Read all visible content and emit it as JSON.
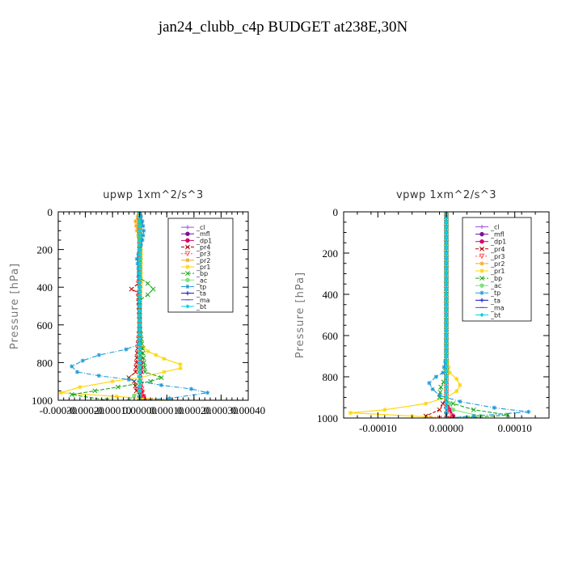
{
  "figure": {
    "title": "jan24_clubb_c4p  BUDGET at238E,30N"
  },
  "chart_data": [
    {
      "type": "line",
      "title": "upwp   1xm^2/s^3",
      "ylabel": "Pressure [hPa]",
      "ylim": [
        1000,
        0
      ],
      "xlim": [
        -0.0003,
        0.0004
      ],
      "yticks": [
        0,
        200,
        400,
        600,
        800,
        1000
      ],
      "xticks": [
        -0.0003,
        -0.0002,
        -0.0001,
        0.0,
        0.0001,
        0.0002,
        0.0003,
        0.0004
      ],
      "xtick_labels": [
        "-0.00030",
        "-0.00020",
        "-0.00010",
        "0.00000",
        "0.00010",
        "0.00020",
        "0.00030",
        "0.00040"
      ],
      "legend_position": "top-right",
      "series": [
        {
          "name": "_cl",
          "color": "#9b4fd8",
          "marker": "+",
          "p": [
            0,
            200,
            400,
            600,
            800,
            900,
            960,
            1000
          ],
          "x": [
            0,
            0,
            0,
            0,
            0,
            0,
            0,
            0
          ]
        },
        {
          "name": "_mfl",
          "color": "#7a0fa0",
          "marker": "o",
          "p": [
            0,
            200,
            400,
            600,
            800,
            900,
            960,
            1000
          ],
          "x": [
            0,
            0,
            0,
            0,
            0,
            0,
            0,
            0
          ]
        },
        {
          "name": "_dp1",
          "color": "#d8006a",
          "marker": "o",
          "p": [
            0,
            300,
            600,
            850,
            900,
            950,
            980,
            1000
          ],
          "x": [
            0,
            0,
            0,
            5e-06,
            0,
            8e-06,
            1.5e-05,
            2e-05
          ]
        },
        {
          "name": "_pr4",
          "color": "#b80000",
          "marker": "x",
          "p": [
            0,
            300,
            380,
            410,
            430,
            600,
            850,
            880,
            900,
            950,
            980,
            1000
          ],
          "x": [
            0,
            0,
            -5e-06,
            -3e-05,
            -5e-06,
            0,
            -1.5e-05,
            -4e-05,
            -2e-05,
            -1.2e-05,
            1e-05,
            4e-05
          ]
        },
        {
          "name": "_pr3",
          "color": "#ff5050",
          "marker": "v",
          "p": [
            0,
            400,
            600,
            880,
            920,
            960,
            1000
          ],
          "x": [
            0,
            0,
            0,
            0,
            5e-06,
            1e-05,
            1.5e-05
          ]
        },
        {
          "name": "_pr2",
          "color": "#f2a81d",
          "marker": "*",
          "p": [
            0,
            50,
            100,
            150,
            200,
            300,
            400,
            500,
            700,
            800,
            900,
            950,
            1000
          ],
          "x": [
            0,
            -1.5e-05,
            -1e-05,
            0,
            3e-06,
            0,
            0,
            0,
            0,
            0,
            0,
            0,
            0
          ]
        },
        {
          "name": "_pr1",
          "color": "#ffd400",
          "marker": "*",
          "p": [
            0,
            200,
            400,
            500,
            600,
            700,
            740,
            780,
            810,
            830,
            850,
            880,
            900,
            930,
            960,
            1000
          ],
          "x": [
            0,
            5e-06,
            5e-06,
            0,
            0,
            0,
            3e-05,
            9e-05,
            0.00015,
            0.00015,
            9e-05,
            0,
            -0.0001,
            -0.00022,
            -0.00029,
            0.00012
          ]
        },
        {
          "name": "_bp",
          "color": "#19a619",
          "marker": "x",
          "p": [
            0,
            350,
            380,
            410,
            440,
            470,
            600,
            850,
            880,
            900,
            930,
            970,
            1000
          ],
          "x": [
            0,
            0,
            3e-05,
            5e-05,
            3e-05,
            0,
            0,
            2e-05,
            8e-05,
            4e-05,
            -8e-05,
            -0.00025,
            -0.00012
          ]
        },
        {
          "name": "_ac",
          "color": "#7ee07e",
          "marker": "o",
          "p": [
            0,
            400,
            600,
            900,
            950,
            1000
          ],
          "x": [
            0,
            0,
            0,
            0,
            0,
            -4e-05
          ]
        },
        {
          "name": "_tp",
          "color": "#1a9ad6",
          "marker": "*",
          "p": [
            0,
            50,
            100,
            150,
            200,
            250,
            300,
            400,
            500,
            700,
            730,
            760,
            790,
            820,
            850,
            870,
            890,
            920,
            940,
            960,
            990,
            1000
          ],
          "x": [
            0,
            1e-05,
            1.5e-05,
            1e-05,
            0,
            -1e-05,
            -5e-06,
            0,
            0,
            0,
            -5e-05,
            -0.00015,
            -0.00021,
            -0.00025,
            -0.00023,
            -0.00015,
            -4e-05,
            8e-05,
            0.00019,
            0.00025,
            0.00011,
            0
          ]
        },
        {
          "name": "_ta",
          "color": "#1010c0",
          "marker": "+",
          "p": [
            0,
            400,
            700,
            1000
          ],
          "x": [
            0,
            0,
            0,
            0
          ]
        },
        {
          "name": "_ma",
          "color": "#3a5ad8",
          "marker": "_",
          "p": [
            0,
            400,
            700,
            1000
          ],
          "x": [
            0,
            0,
            0,
            0
          ]
        },
        {
          "name": "_bt",
          "color": "#00d4e8",
          "marker": "D",
          "p": [
            0,
            400,
            700,
            1000
          ],
          "x": [
            0,
            0,
            0,
            0
          ]
        }
      ]
    },
    {
      "type": "line",
      "title": "vpwp   1xm^2/s^3",
      "ylabel": "Pressure [hPa]",
      "ylim": [
        1000,
        0
      ],
      "xlim": [
        -0.00015,
        0.00015
      ],
      "yticks": [
        0,
        200,
        400,
        600,
        800,
        1000
      ],
      "xticks": [
        -0.0001,
        0.0,
        0.0001
      ],
      "xtick_labels": [
        "-0.00010",
        "0.00000",
        "0.00010"
      ],
      "legend_position": "top-right",
      "series": [
        {
          "name": "_cl",
          "color": "#9b4fd8",
          "marker": "+",
          "p": [
            0,
            200,
            400,
            600,
            800,
            900,
            1000
          ],
          "x": [
            0,
            0,
            0,
            0,
            0,
            0,
            0
          ]
        },
        {
          "name": "_mfl",
          "color": "#7a0fa0",
          "marker": "o",
          "p": [
            0,
            200,
            400,
            600,
            800,
            900,
            1000
          ],
          "x": [
            0,
            0,
            0,
            0,
            0,
            0,
            0
          ]
        },
        {
          "name": "_dp1",
          "color": "#d8006a",
          "marker": "o",
          "p": [
            0,
            600,
            900,
            960,
            990,
            1000
          ],
          "x": [
            0,
            0,
            0,
            5e-06,
            1e-05,
            0
          ]
        },
        {
          "name": "_pr4",
          "color": "#b80000",
          "marker": "x",
          "p": [
            0,
            600,
            900,
            960,
            990,
            1000
          ],
          "x": [
            0,
            0,
            0,
            -1e-05,
            -3e-05,
            -1e-05
          ]
        },
        {
          "name": "_pr3",
          "color": "#ff5050",
          "marker": "v",
          "p": [
            0,
            600,
            900,
            960,
            990,
            1000
          ],
          "x": [
            0,
            0,
            0,
            3e-06,
            8e-06,
            0
          ]
        },
        {
          "name": "_pr2",
          "color": "#f2a81d",
          "marker": "*",
          "p": [
            0,
            600,
            900,
            1000
          ],
          "x": [
            0,
            0,
            0,
            0
          ]
        },
        {
          "name": "_pr1",
          "color": "#ffd400",
          "marker": "*",
          "p": [
            0,
            700,
            780,
            810,
            840,
            870,
            900,
            930,
            960,
            975,
            990,
            1000
          ],
          "x": [
            0,
            0,
            5e-06,
            1.5e-05,
            2e-05,
            1.5e-05,
            0,
            -3e-05,
            -9e-05,
            -0.00014,
            -5e-05,
            0
          ]
        },
        {
          "name": "_bp",
          "color": "#19a619",
          "marker": "x",
          "p": [
            0,
            800,
            850,
            900,
            930,
            960,
            985,
            1000
          ],
          "x": [
            0,
            0,
            -8e-06,
            -1e-05,
            1e-05,
            4e-05,
            9e-05,
            3e-05
          ]
        },
        {
          "name": "_ac",
          "color": "#7ee07e",
          "marker": "o",
          "p": [
            0,
            800,
            900,
            960,
            990,
            1000
          ],
          "x": [
            0,
            0,
            0,
            1e-05,
            5e-05,
            2e-05
          ]
        },
        {
          "name": "_tp",
          "color": "#1a9ad6",
          "marker": "*",
          "p": [
            0,
            700,
            780,
            800,
            830,
            860,
            890,
            920,
            950,
            970,
            990,
            1000
          ],
          "x": [
            0,
            0,
            -5e-06,
            -1.5e-05,
            -2.5e-05,
            -2e-05,
            -1e-05,
            2e-05,
            7e-05,
            0.00012,
            4e-05,
            0
          ]
        },
        {
          "name": "_ta",
          "color": "#1010c0",
          "marker": "+",
          "p": [
            0,
            600,
            900,
            1000
          ],
          "x": [
            0,
            0,
            0,
            0
          ]
        },
        {
          "name": "_ma",
          "color": "#3a5ad8",
          "marker": "_",
          "p": [
            0,
            600,
            900,
            1000
          ],
          "x": [
            0,
            0,
            0,
            0
          ]
        },
        {
          "name": "_bt",
          "color": "#00d4e8",
          "marker": "D",
          "p": [
            0,
            600,
            900,
            1000
          ],
          "x": [
            0,
            0,
            0,
            0
          ]
        }
      ]
    }
  ]
}
